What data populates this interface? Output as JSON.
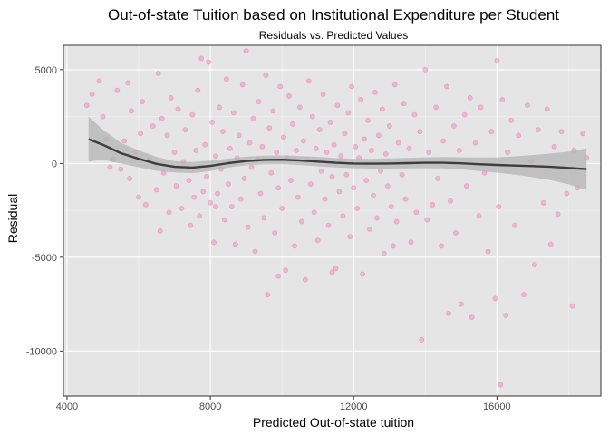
{
  "chart_data": {
    "type": "scatter",
    "title": "Out-of-state Tuition based on Institutional Expenditure per Student",
    "subtitle": "Residuals vs. Predicted Values",
    "xlabel": "Predicted Out-of-state tuition",
    "ylabel": "Residual",
    "xlim": [
      3900,
      18900
    ],
    "ylim": [
      -12400,
      6300
    ],
    "x_ticks": [
      4000,
      8000,
      12000,
      16000
    ],
    "x_tick_labels": [
      "4000",
      "8000",
      "12000",
      "16000"
    ],
    "y_ticks": [
      5000,
      0,
      -5000,
      -10000
    ],
    "y_tick_labels": [
      "5000",
      "0",
      "-5000",
      "-10000"
    ],
    "grid": true,
    "legend": "none",
    "point_color": "#f06eaa",
    "smooth_color": "#3d3d3d",
    "band_color": "#b3b3b3",
    "panel_bg": "#e5e5e5",
    "series": [
      {
        "kind": "points",
        "points": [
          [
            4550,
            3100
          ],
          [
            4700,
            3700
          ],
          [
            4900,
            4400
          ],
          [
            5000,
            2500
          ],
          [
            5100,
            1300
          ],
          [
            5200,
            -200
          ],
          [
            5300,
            200
          ],
          [
            5400,
            3900
          ],
          [
            5500,
            -300
          ],
          [
            5600,
            1200
          ],
          [
            5700,
            4300
          ],
          [
            5750,
            -800
          ],
          [
            5800,
            2800
          ],
          [
            5900,
            600
          ],
          [
            6000,
            -1800
          ],
          [
            6050,
            1600
          ],
          [
            6100,
            3300
          ],
          [
            6200,
            -2200
          ],
          [
            6300,
            200
          ],
          [
            6400,
            2000
          ],
          [
            6500,
            -1400
          ],
          [
            6550,
            4800
          ],
          [
            6600,
            -3600
          ],
          [
            6650,
            2400
          ],
          [
            6700,
            -500
          ],
          [
            6800,
            1500
          ],
          [
            6850,
            -2600
          ],
          [
            6900,
            3500
          ],
          [
            7000,
            600
          ],
          [
            7050,
            -1200
          ],
          [
            7100,
            2900
          ],
          [
            7200,
            -2400
          ],
          [
            7250,
            100
          ],
          [
            7300,
            1800
          ],
          [
            7400,
            -900
          ],
          [
            7450,
            -3300
          ],
          [
            7500,
            2600
          ],
          [
            7550,
            -1800
          ],
          [
            7600,
            700
          ],
          [
            7650,
            3900
          ],
          [
            7700,
            -2800
          ],
          [
            7750,
            5600
          ],
          [
            7800,
            -1500
          ],
          [
            7850,
            1000
          ],
          [
            7900,
            -700
          ],
          [
            7950,
            5400
          ],
          [
            8000,
            -2100
          ],
          [
            8050,
            2200
          ],
          [
            8100,
            -4200
          ],
          [
            8150,
            400
          ],
          [
            8200,
            -1600
          ],
          [
            8250,
            3000
          ],
          [
            8300,
            -300
          ],
          [
            8350,
            1700
          ],
          [
            8400,
            -3000
          ],
          [
            8450,
            4500
          ],
          [
            8500,
            -1100
          ],
          [
            8550,
            800
          ],
          [
            8600,
            -2300
          ],
          [
            8650,
            2700
          ],
          [
            8700,
            -4300
          ],
          [
            8750,
            300
          ],
          [
            8800,
            1500
          ],
          [
            8850,
            -1900
          ],
          [
            8900,
            4200
          ],
          [
            8950,
            -800
          ],
          [
            9000,
            6000
          ],
          [
            9050,
            -3400
          ],
          [
            9100,
            1100
          ],
          [
            9150,
            -200
          ],
          [
            9200,
            2400
          ],
          [
            9250,
            -4700
          ],
          [
            9300,
            200
          ],
          [
            9350,
            3300
          ],
          [
            9400,
            -1600
          ],
          [
            9450,
            900
          ],
          [
            9500,
            -2900
          ],
          [
            9550,
            4700
          ],
          [
            9600,
            -7000
          ],
          [
            9650,
            1900
          ],
          [
            9700,
            -500
          ],
          [
            9750,
            2800
          ],
          [
            9800,
            -3700
          ],
          [
            9850,
            600
          ],
          [
            9900,
            -1300
          ],
          [
            9950,
            4100
          ],
          [
            10000,
            -2400
          ],
          [
            10050,
            1400
          ],
          [
            10100,
            -5700
          ],
          [
            10150,
            300
          ],
          [
            10200,
            3600
          ],
          [
            10250,
            -900
          ],
          [
            10300,
            2100
          ],
          [
            10350,
            -4400
          ],
          [
            10400,
            700
          ],
          [
            10450,
            -1800
          ],
          [
            10500,
            3000
          ],
          [
            10550,
            -3100
          ],
          [
            10600,
            1200
          ],
          [
            10650,
            -6200
          ],
          [
            10700,
            200
          ],
          [
            10750,
            4400
          ],
          [
            10800,
            -1100
          ],
          [
            10850,
            2500
          ],
          [
            10900,
            -2600
          ],
          [
            10950,
            800
          ],
          [
            11000,
            -4100
          ],
          [
            11050,
            1800
          ],
          [
            11100,
            -400
          ],
          [
            11150,
            3700
          ],
          [
            11200,
            -1900
          ],
          [
            11250,
            600
          ],
          [
            11300,
            -3300
          ],
          [
            11350,
            2200
          ],
          [
            11400,
            -700
          ],
          [
            11450,
            1000
          ],
          [
            11500,
            -5600
          ],
          [
            11550,
            3100
          ],
          [
            11600,
            -1500
          ],
          [
            11650,
            400
          ],
          [
            11700,
            -2800
          ],
          [
            11750,
            1600
          ],
          [
            11800,
            -600
          ],
          [
            11850,
            2700
          ],
          [
            11900,
            -3900
          ],
          [
            11950,
            4100
          ],
          [
            12000,
            -1300
          ],
          [
            12050,
            900
          ],
          [
            12100,
            -2400
          ],
          [
            12150,
            300
          ],
          [
            12200,
            3400
          ],
          [
            12250,
            -5900
          ],
          [
            12300,
            1300
          ],
          [
            12350,
            -900
          ],
          [
            12400,
            2300
          ],
          [
            12450,
            -3500
          ],
          [
            12500,
            700
          ],
          [
            12550,
            -1700
          ],
          [
            12600,
            3800
          ],
          [
            12650,
            -2900
          ],
          [
            12700,
            1500
          ],
          [
            12750,
            -400
          ],
          [
            12800,
            2900
          ],
          [
            12850,
            -4800
          ],
          [
            12900,
            500
          ],
          [
            12950,
            -1200
          ],
          [
            13000,
            2000
          ],
          [
            13050,
            -2300
          ],
          [
            13150,
            4200
          ],
          [
            13200,
            -3100
          ],
          [
            13250,
            1100
          ],
          [
            13350,
            -600
          ],
          [
            13400,
            3200
          ],
          [
            13450,
            -1900
          ],
          [
            13550,
            800
          ],
          [
            13600,
            -4200
          ],
          [
            13700,
            2600
          ],
          [
            13750,
            -2600
          ],
          [
            13850,
            1700
          ],
          [
            13900,
            -9400
          ],
          [
            14000,
            5000
          ],
          [
            14050,
            -3000
          ],
          [
            14100,
            600
          ],
          [
            14200,
            -2200
          ],
          [
            14300,
            3000
          ],
          [
            14350,
            -800
          ],
          [
            14450,
            -4400
          ],
          [
            14500,
            1200
          ],
          [
            14600,
            4100
          ],
          [
            14650,
            -8000
          ],
          [
            14700,
            -2000
          ],
          [
            14800,
            2000
          ],
          [
            14850,
            -3700
          ],
          [
            14950,
            700
          ],
          [
            15000,
            -7500
          ],
          [
            15100,
            2600
          ],
          [
            15150,
            -1200
          ],
          [
            15250,
            3500
          ],
          [
            15300,
            -8200
          ],
          [
            15400,
            1100
          ],
          [
            15500,
            -2800
          ],
          [
            15550,
            3000
          ],
          [
            15650,
            -500
          ],
          [
            15750,
            -4700
          ],
          [
            15850,
            1700
          ],
          [
            15950,
            -7200
          ],
          [
            16000,
            5500
          ],
          [
            16050,
            -2300
          ],
          [
            16150,
            3400
          ],
          [
            16250,
            -8100
          ],
          [
            16300,
            600
          ],
          [
            16400,
            2300
          ],
          [
            16500,
            -3300
          ],
          [
            16600,
            1500
          ],
          [
            16750,
            -7000
          ],
          [
            16850,
            3100
          ],
          [
            16950,
            100
          ],
          [
            17050,
            -5400
          ],
          [
            17150,
            1800
          ],
          [
            17300,
            -2100
          ],
          [
            17400,
            2900
          ],
          [
            17500,
            -4300
          ],
          [
            17600,
            900
          ],
          [
            17700,
            -2700
          ],
          [
            17800,
            1700
          ],
          [
            17950,
            -1600
          ],
          [
            18100,
            -7600
          ],
          [
            18150,
            700
          ],
          [
            18250,
            -1300
          ],
          [
            18400,
            1600
          ],
          [
            18500,
            300
          ],
          [
            16100,
            -11800
          ],
          [
            9900,
            -6000
          ],
          [
            11400,
            -5800
          ],
          [
            13100,
            -4400
          ],
          [
            8150,
            -2300
          ]
        ]
      },
      {
        "kind": "smooth",
        "points": [
          [
            4600,
            1300
          ],
          [
            5000,
            1000
          ],
          [
            5500,
            550
          ],
          [
            6000,
            250
          ],
          [
            6500,
            -20
          ],
          [
            7000,
            -180
          ],
          [
            7500,
            -220
          ],
          [
            8000,
            -130
          ],
          [
            8500,
            20
          ],
          [
            9000,
            130
          ],
          [
            9500,
            190
          ],
          [
            10000,
            200
          ],
          [
            10500,
            160
          ],
          [
            11000,
            100
          ],
          [
            11500,
            40
          ],
          [
            12000,
            0
          ],
          [
            12500,
            -10
          ],
          [
            13000,
            0
          ],
          [
            13500,
            20
          ],
          [
            14000,
            40
          ],
          [
            14500,
            40
          ],
          [
            15000,
            10
          ],
          [
            15500,
            -40
          ],
          [
            16000,
            -80
          ],
          [
            16500,
            -110
          ],
          [
            17000,
            -140
          ],
          [
            17500,
            -180
          ],
          [
            18000,
            -240
          ],
          [
            18500,
            -300
          ]
        ],
        "band_upper": [
          [
            4600,
            2500
          ],
          [
            5000,
            1800
          ],
          [
            5500,
            1100
          ],
          [
            6000,
            700
          ],
          [
            6500,
            350
          ],
          [
            7000,
            120
          ],
          [
            7500,
            80
          ],
          [
            8000,
            150
          ],
          [
            8500,
            260
          ],
          [
            9000,
            360
          ],
          [
            9500,
            420
          ],
          [
            10000,
            430
          ],
          [
            10500,
            400
          ],
          [
            11000,
            350
          ],
          [
            11500,
            290
          ],
          [
            12000,
            250
          ],
          [
            12500,
            250
          ],
          [
            13000,
            270
          ],
          [
            13500,
            300
          ],
          [
            14000,
            330
          ],
          [
            14500,
            340
          ],
          [
            15000,
            330
          ],
          [
            15500,
            320
          ],
          [
            16000,
            330
          ],
          [
            16500,
            380
          ],
          [
            17000,
            450
          ],
          [
            17500,
            530
          ],
          [
            18000,
            630
          ],
          [
            18500,
            800
          ]
        ],
        "band_lower": [
          [
            4600,
            100
          ],
          [
            5000,
            200
          ],
          [
            5500,
            0
          ],
          [
            6000,
            -200
          ],
          [
            6500,
            -390
          ],
          [
            7000,
            -480
          ],
          [
            7500,
            -520
          ],
          [
            8000,
            -410
          ],
          [
            8500,
            -220
          ],
          [
            9000,
            -100
          ],
          [
            9500,
            -40
          ],
          [
            10000,
            -30
          ],
          [
            10500,
            -80
          ],
          [
            11000,
            -150
          ],
          [
            11500,
            -210
          ],
          [
            12000,
            -250
          ],
          [
            12500,
            -270
          ],
          [
            13000,
            -270
          ],
          [
            13500,
            -260
          ],
          [
            14000,
            -250
          ],
          [
            14500,
            -260
          ],
          [
            15000,
            -310
          ],
          [
            15500,
            -400
          ],
          [
            16000,
            -490
          ],
          [
            16500,
            -600
          ],
          [
            17000,
            -730
          ],
          [
            17500,
            -890
          ],
          [
            18000,
            -1110
          ],
          [
            18500,
            -1400
          ]
        ]
      }
    ]
  }
}
